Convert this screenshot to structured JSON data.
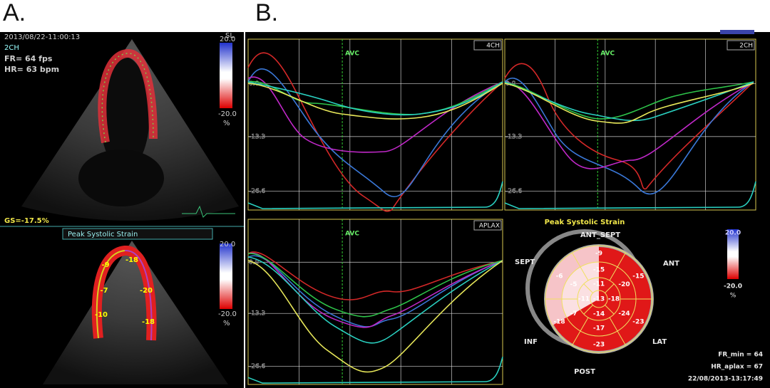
{
  "panel_a": {
    "label": "A.",
    "timestamp": "2013/08/22-11:00:13",
    "view": "2CH",
    "frame_rate": "FR= 64 fps",
    "heart_rate": "HR= 63 bpm",
    "unit_top": "SL",
    "colorbar_top": {
      "max": "20.0",
      "min": "-20.0",
      "unit": "%"
    },
    "global_strain": "GS=-17.5%",
    "strain_title": "Peak Systolic Strain",
    "colorbar_bottom": {
      "max": "20.0",
      "min": "-20.0",
      "unit": "%"
    },
    "segments": [
      "-9",
      "-18",
      "-7",
      "-20",
      "-10",
      "-18"
    ]
  },
  "panel_b": {
    "label": "B.",
    "plots": [
      {
        "view": "4CH",
        "marker": "AVC",
        "yticks": [
          "0.0",
          "-13.3",
          "-26.6"
        ]
      },
      {
        "view": "2CH",
        "marker": "AVC",
        "yticks": [
          "0.0",
          "-13.3",
          "-26.6"
        ]
      },
      {
        "view": "APLAX",
        "marker": "AVC",
        "yticks": [
          "0.0",
          "-13.3",
          "-26.6"
        ]
      }
    ],
    "bullseye": {
      "title": "Peak Systolic Strain",
      "walls": [
        "ANT_SEPT",
        "ANT",
        "LAT",
        "POST",
        "INF",
        "SEPT"
      ],
      "basal": [
        "-9",
        "-15",
        "-23",
        "-23",
        "-18",
        "-6"
      ],
      "mid": [
        "-15",
        "-20",
        "-24",
        "-17",
        "-7",
        "-5"
      ],
      "apical": [
        "-11",
        "-18",
        "-14",
        "-11"
      ],
      "apex": "-13",
      "colorbar": {
        "max": "20.0",
        "min": "-20.0",
        "unit": "%"
      },
      "frame_rate": "FR_min = 64",
      "heart_rate": "HR_aplax = 67",
      "timestamp": "22/08/2013-13:17:49"
    }
  }
}
